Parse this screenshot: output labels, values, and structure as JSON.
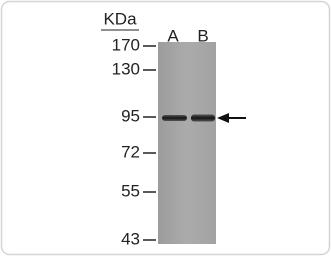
{
  "unit_label": "KDa",
  "markers": [
    "170",
    "130",
    "95",
    "72",
    "55",
    "43"
  ],
  "lanes": [
    "A",
    "B"
  ]
}
